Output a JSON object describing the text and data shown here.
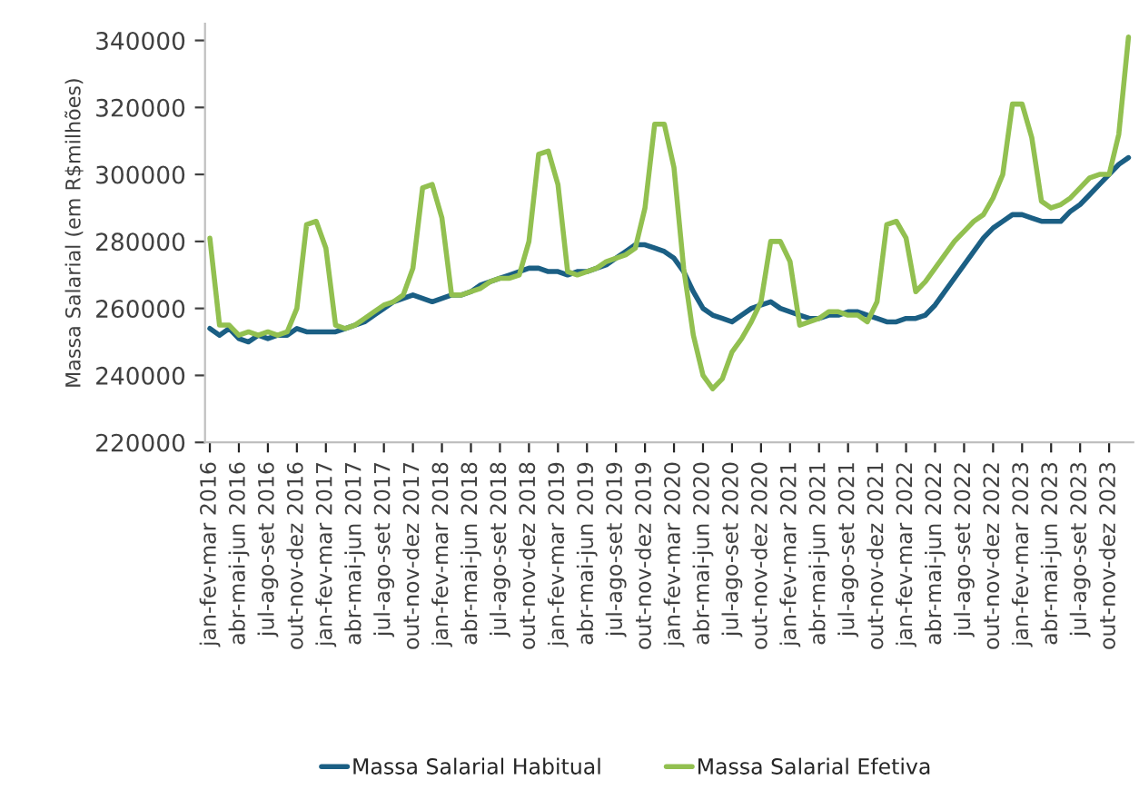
{
  "chart_data": {
    "type": "line",
    "ylabel": "Massa Salarial (em R$milhões)",
    "categories": [
      "jan-fev-mar 2016",
      null,
      null,
      "abr-mai-jun 2016",
      null,
      null,
      "jul-ago-set 2016",
      null,
      null,
      "out-nov-dez 2016",
      null,
      null,
      "jan-fev-mar 2017",
      null,
      null,
      "abr-mai-jun 2017",
      null,
      null,
      "jul-ago-set 2017",
      null,
      null,
      "out-nov-dez 2017",
      null,
      null,
      "jan-fev-mar 2018",
      null,
      null,
      "abr-mai-jun 2018",
      null,
      null,
      "jul-ago-set 2018",
      null,
      null,
      "out-nov-dez 2018",
      null,
      null,
      "jan-fev-mar 2019",
      null,
      null,
      "abr-mai-jun 2019",
      null,
      null,
      "jul-ago-set 2019",
      null,
      null,
      "out-nov-dez 2019",
      null,
      null,
      "jan-fev-mar 2020",
      null,
      null,
      "abr-mai-jun 2020",
      null,
      null,
      "jul-ago-set 2020",
      null,
      null,
      "out-nov-dez 2020",
      null,
      null,
      "jan-fev-mar 2021",
      null,
      null,
      "abr-mai-jun 2021",
      null,
      null,
      "jul-ago-set 2021",
      null,
      null,
      "out-nov-dez 2021",
      null,
      null,
      "jan-fev-mar 2022",
      null,
      null,
      "abr-mai-jun 2022",
      null,
      null,
      "jul-ago-set 2022",
      null,
      null,
      "out-nov-dez 2022",
      null,
      null,
      "jan-fev-mar 2023",
      null,
      null,
      "abr-mai-jun 2023",
      null,
      null,
      "jul-ago-set 2023",
      null,
      null,
      "out-nov-dez 2023",
      null,
      null
    ],
    "series": [
      {
        "name": "Massa Salarial Habitual",
        "color": "#1b5f84",
        "values": [
          254000,
          252000,
          254000,
          251000,
          250000,
          252000,
          251000,
          252000,
          252000,
          254000,
          253000,
          253000,
          253000,
          253000,
          254000,
          255000,
          256000,
          258000,
          260000,
          262000,
          263000,
          264000,
          263000,
          262000,
          263000,
          264000,
          264000,
          265000,
          267000,
          268000,
          269000,
          270000,
          271000,
          272000,
          272000,
          271000,
          271000,
          270000,
          271000,
          271000,
          272000,
          273000,
          275000,
          277000,
          279000,
          279000,
          278000,
          277000,
          275000,
          271000,
          265000,
          260000,
          258000,
          257000,
          256000,
          258000,
          260000,
          261000,
          262000,
          260000,
          259000,
          258000,
          257000,
          257000,
          258000,
          258000,
          259000,
          259000,
          258000,
          257000,
          256000,
          256000,
          257000,
          257000,
          258000,
          261000,
          265000,
          269000,
          273000,
          277000,
          281000,
          284000,
          286000,
          288000,
          288000,
          287000,
          286000,
          286000,
          286000,
          289000,
          291000,
          294000,
          297000,
          300000,
          303000,
          305000
        ]
      },
      {
        "name": "Massa Salarial Efetiva",
        "color": "#92c050",
        "values": [
          281000,
          255000,
          255000,
          252000,
          253000,
          252000,
          253000,
          252000,
          253000,
          260000,
          285000,
          286000,
          278000,
          255000,
          254000,
          255000,
          257000,
          259000,
          261000,
          262000,
          264000,
          272000,
          296000,
          297000,
          287000,
          264000,
          264000,
          265000,
          266000,
          268000,
          269000,
          269000,
          270000,
          280000,
          306000,
          307000,
          297000,
          271000,
          270000,
          271000,
          272000,
          274000,
          275000,
          276000,
          278000,
          290000,
          315000,
          315000,
          302000,
          272000,
          252000,
          240000,
          236000,
          239000,
          247000,
          251000,
          256000,
          262000,
          280000,
          280000,
          274000,
          255000,
          256000,
          257000,
          259000,
          259000,
          258000,
          258000,
          256000,
          262000,
          285000,
          286000,
          281000,
          265000,
          268000,
          272000,
          276000,
          280000,
          283000,
          286000,
          288000,
          293000,
          300000,
          321000,
          321000,
          311000,
          292000,
          290000,
          291000,
          293000,
          296000,
          299000,
          300000,
          300000,
          312000,
          341000
        ]
      }
    ],
    "ylim": [
      220000,
      345000
    ],
    "yticks": [
      220000,
      240000,
      260000,
      280000,
      300000,
      320000,
      340000
    ],
    "grid": false,
    "legend": "bottom",
    "marker": "none",
    "line_style": "solid"
  }
}
